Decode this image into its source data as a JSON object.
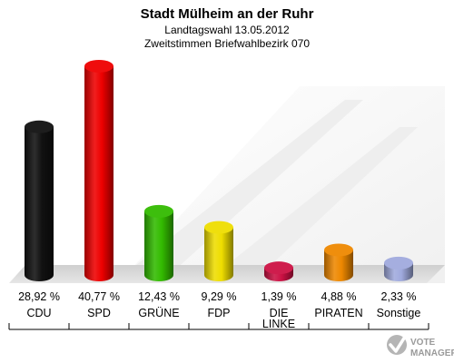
{
  "header": {
    "title": "Stadt Mülheim an der Ruhr",
    "subtitle1": "Landtagswahl 13.05.2012",
    "subtitle2": "Zweitstimmen Briefwahlbezirk 070"
  },
  "logo": {
    "line1": "VOTE",
    "line2": "MANAGER"
  },
  "chart_data": {
    "type": "bar",
    "title": "Stadt Mülheim an der Ruhr",
    "subtitle": "Landtagswahl 13.05.2012 / Zweitstimmen Briefwahlbezirk 070",
    "categories": [
      "CDU",
      "SPD",
      "GRÜNE",
      "FDP",
      "DIE LINKE",
      "PIRATEN",
      "Sonstige"
    ],
    "category_lines": [
      [
        "CDU"
      ],
      [
        "SPD"
      ],
      [
        "GRÜNE"
      ],
      [
        "FDP"
      ],
      [
        "DIE",
        "LINKE"
      ],
      [
        "PIRATEN"
      ],
      [
        "Sonstige"
      ]
    ],
    "values": [
      28.92,
      40.77,
      12.43,
      9.29,
      1.39,
      4.88,
      2.33
    ],
    "value_labels": [
      "28,92 %",
      "40,77 %",
      "12,43 %",
      "9,29 %",
      "1,39 %",
      "4,88 %",
      "2,33 %"
    ],
    "colors": [
      "#111111",
      "#ee0000",
      "#33bb00",
      "#eedd00",
      "#cc1144",
      "#ee8800",
      "#a0aadd"
    ],
    "unit": "%",
    "ylim": [
      0,
      42
    ],
    "grid": false,
    "legend": "none"
  }
}
